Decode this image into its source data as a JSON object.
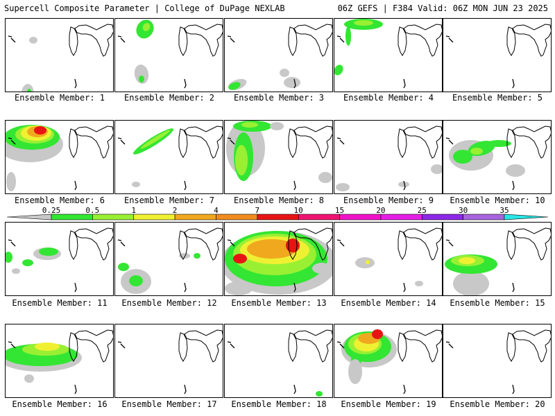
{
  "header": {
    "left": "Supercell Composite Parameter | College of DuPage NEXLAB",
    "right": "06Z GEFS | F384 Valid: 06Z MON JUN 23 2025"
  },
  "colorbar": {
    "ticks": [
      "0.25",
      "0.5",
      "1",
      "2",
      "4",
      "7",
      "10",
      "15",
      "20",
      "25",
      "30",
      "35"
    ],
    "colors": [
      "#c8c8c8",
      "#33e633",
      "#99f033",
      "#f0f033",
      "#f0a81e",
      "#f08c1e",
      "#e81414",
      "#f01470",
      "#f014c8",
      "#e61ee6",
      "#8c28e6",
      "#a864dc",
      "#28e6e6"
    ]
  },
  "levels": {
    "gray": "#c8c8c8",
    "green": "#33e633",
    "lime": "#99f033",
    "yellow": "#f0f033",
    "orange": "#f0a81e",
    "red": "#e81414"
  },
  "panels": [
    {
      "label": "Ensemble Member: 1"
    },
    {
      "label": "Ensemble Member: 2"
    },
    {
      "label": "Ensemble Member: 3"
    },
    {
      "label": "Ensemble Member: 4"
    },
    {
      "label": "Ensemble Member: 5"
    },
    {
      "label": "Ensemble Member: 6"
    },
    {
      "label": "Ensemble Member: 7"
    },
    {
      "label": "Ensemble Member: 8"
    },
    {
      "label": "Ensemble Member: 9"
    },
    {
      "label": "Ensemble Member: 10"
    },
    {
      "label": "Ensemble Member: 11"
    },
    {
      "label": "Ensemble Member: 12"
    },
    {
      "label": "Ensemble Member: 13"
    },
    {
      "label": "Ensemble Member: 14"
    },
    {
      "label": "Ensemble Member: 15"
    },
    {
      "label": "Ensemble Member: 16"
    },
    {
      "label": "Ensemble Member: 17"
    },
    {
      "label": "Ensemble Member: 18"
    },
    {
      "label": "Ensemble Member: 19"
    },
    {
      "label": "Ensemble Member: 20"
    }
  ]
}
